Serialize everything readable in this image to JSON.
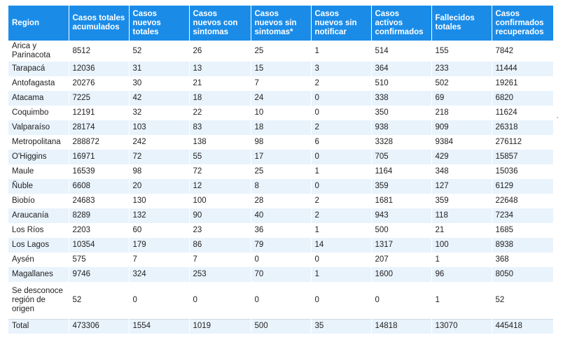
{
  "table": {
    "headers": [
      "Region",
      "Casos totales acumulados",
      "Casos nuevos totales",
      "Casos nuevos con sintomas",
      "Casos nuevos sin sintomas*",
      "Casos nuevos sin notificar",
      "Casos activos confirmados",
      "Fallecidos totales",
      "Casos confirmados recuperados"
    ],
    "rows": [
      [
        "Arica y Parinacota",
        "8512",
        "52",
        "26",
        "25",
        "1",
        "514",
        "155",
        "7842"
      ],
      [
        "Tarapacá",
        "12036",
        "31",
        "13",
        "15",
        "3",
        "364",
        "233",
        "11444"
      ],
      [
        "Antofagasta",
        "20276",
        "30",
        "21",
        "7",
        "2",
        "510",
        "502",
        "19261"
      ],
      [
        "Atacama",
        "7225",
        "42",
        "18",
        "24",
        "0",
        "338",
        "69",
        "6820"
      ],
      [
        "Coquimbo",
        "12191",
        "32",
        "22",
        "10",
        "0",
        "350",
        "218",
        "11624"
      ],
      [
        "Valparaíso",
        "28174",
        "103",
        "83",
        "18",
        "2",
        "938",
        "909",
        "26318"
      ],
      [
        "Metropolitana",
        "288872",
        "242",
        "138",
        "98",
        "6",
        "3328",
        "9384",
        "276112"
      ],
      [
        "O'Higgins",
        "16971",
        "72",
        "55",
        "17",
        "0",
        "705",
        "429",
        "15857"
      ],
      [
        "Maule",
        "16539",
        "98",
        "72",
        "25",
        "1",
        "1164",
        "348",
        "15036"
      ],
      [
        "Ñuble",
        "6608",
        "20",
        "12",
        "8",
        "0",
        "359",
        "127",
        "6129"
      ],
      [
        "Biobío",
        "24683",
        "130",
        "100",
        "28",
        "2",
        "1681",
        "359",
        "22648"
      ],
      [
        "Araucanía",
        "8289",
        "132",
        "90",
        "40",
        "2",
        "943",
        "118",
        "7234"
      ],
      [
        "Los Ríos",
        "2203",
        "60",
        "23",
        "36",
        "1",
        "500",
        "21",
        "1685"
      ],
      [
        "Los Lagos",
        "10354",
        "179",
        "86",
        "79",
        "14",
        "1317",
        "100",
        "8938"
      ],
      [
        "Aysén",
        "575",
        "7",
        "7",
        "0",
        "0",
        "207",
        "1",
        "368"
      ],
      [
        "Magallanes",
        "9746",
        "324",
        "253",
        "70",
        "1",
        "1600",
        "96",
        "8050"
      ],
      [
        "Se desconoce región de origen",
        "52",
        "0",
        "0",
        "0",
        "0",
        "0",
        "1",
        "52"
      ],
      [
        "Total",
        "473306",
        "1554",
        "1019",
        "500",
        "35",
        "14818",
        "13070",
        "445418"
      ]
    ]
  },
  "colors": {
    "header_bg": "#1a8ce8",
    "header_text": "#ffffff",
    "row_alt_bg": "#e9f3fc",
    "text": "#222222"
  }
}
